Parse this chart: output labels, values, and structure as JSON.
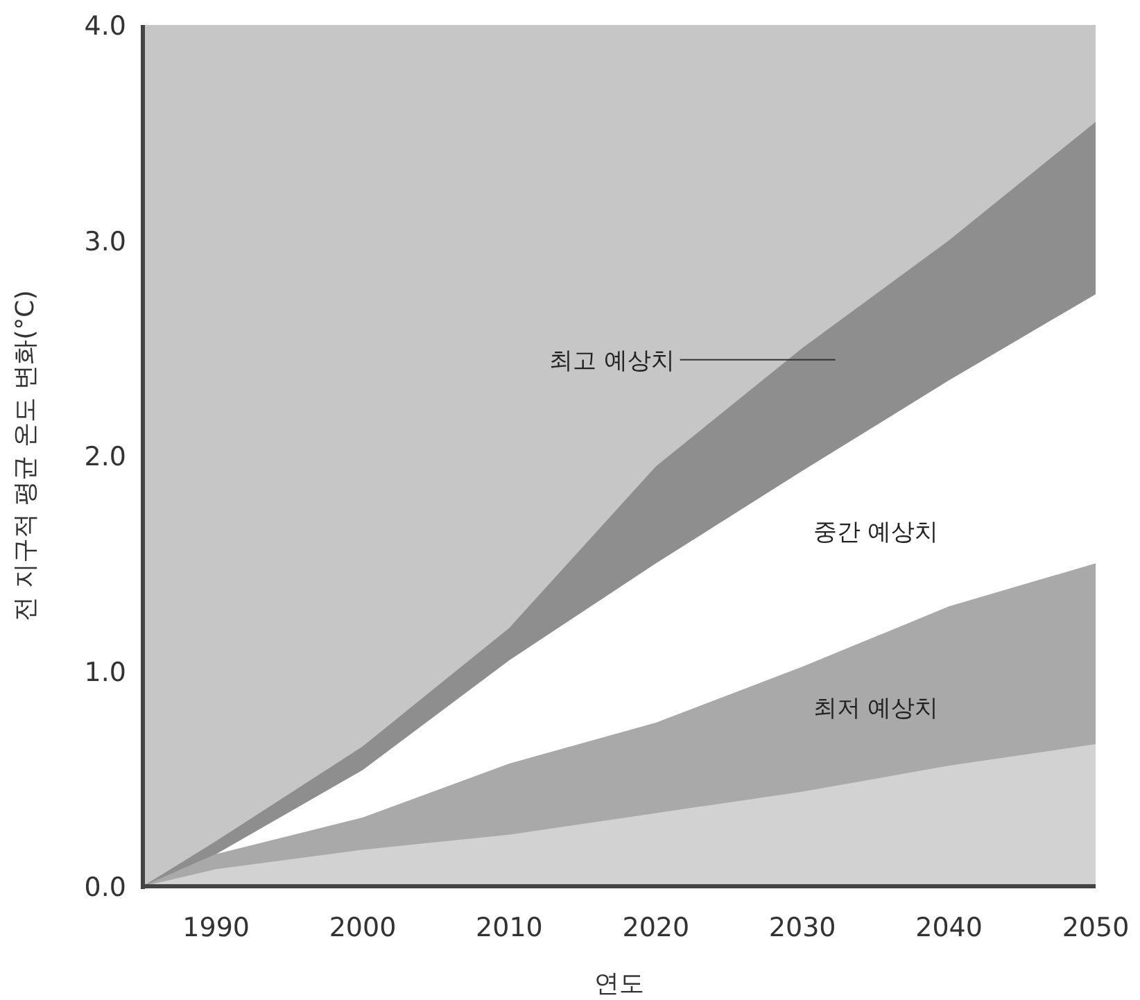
{
  "chart_data": {
    "type": "area",
    "stacked": true,
    "xlabel": "연도",
    "ylabel": "전 지구적 평균 온도 변화(°C)",
    "x": [
      1985,
      1990,
      2000,
      2010,
      2020,
      2030,
      2040,
      2050
    ],
    "xlim": [
      1985,
      2050
    ],
    "ylim": [
      0,
      4
    ],
    "xticks": [
      1990,
      2000,
      2010,
      2020,
      2030,
      2040,
      2050
    ],
    "yticks": [
      {
        "value": 0,
        "label": "0.0"
      },
      {
        "value": 1,
        "label": "1.0"
      },
      {
        "value": 2,
        "label": "2.0"
      },
      {
        "value": 3,
        "label": "3.0"
      },
      {
        "value": 4,
        "label": "4.0"
      }
    ],
    "series": [
      {
        "color": "#d2d2d2",
        "values": [
          0,
          0.08,
          0.17,
          0.24,
          0.34,
          0.44,
          0.56,
          0.66
        ]
      },
      {
        "name": "최저 예상치",
        "color": "#a9a9a9",
        "values": [
          0,
          0.07,
          0.15,
          0.33,
          0.42,
          0.58,
          0.74,
          0.84
        ]
      },
      {
        "name": "중간 예상치",
        "color": "#ffffff",
        "values": [
          0,
          0,
          0.22,
          0.48,
          0.74,
          0.91,
          1.05,
          1.25
        ]
      },
      {
        "name": "최고 예상치",
        "color": "#8e8e8e",
        "values": [
          0,
          0.06,
          0.11,
          0.15,
          0.45,
          0.57,
          0.65,
          0.8
        ]
      }
    ],
    "grid": false
  }
}
